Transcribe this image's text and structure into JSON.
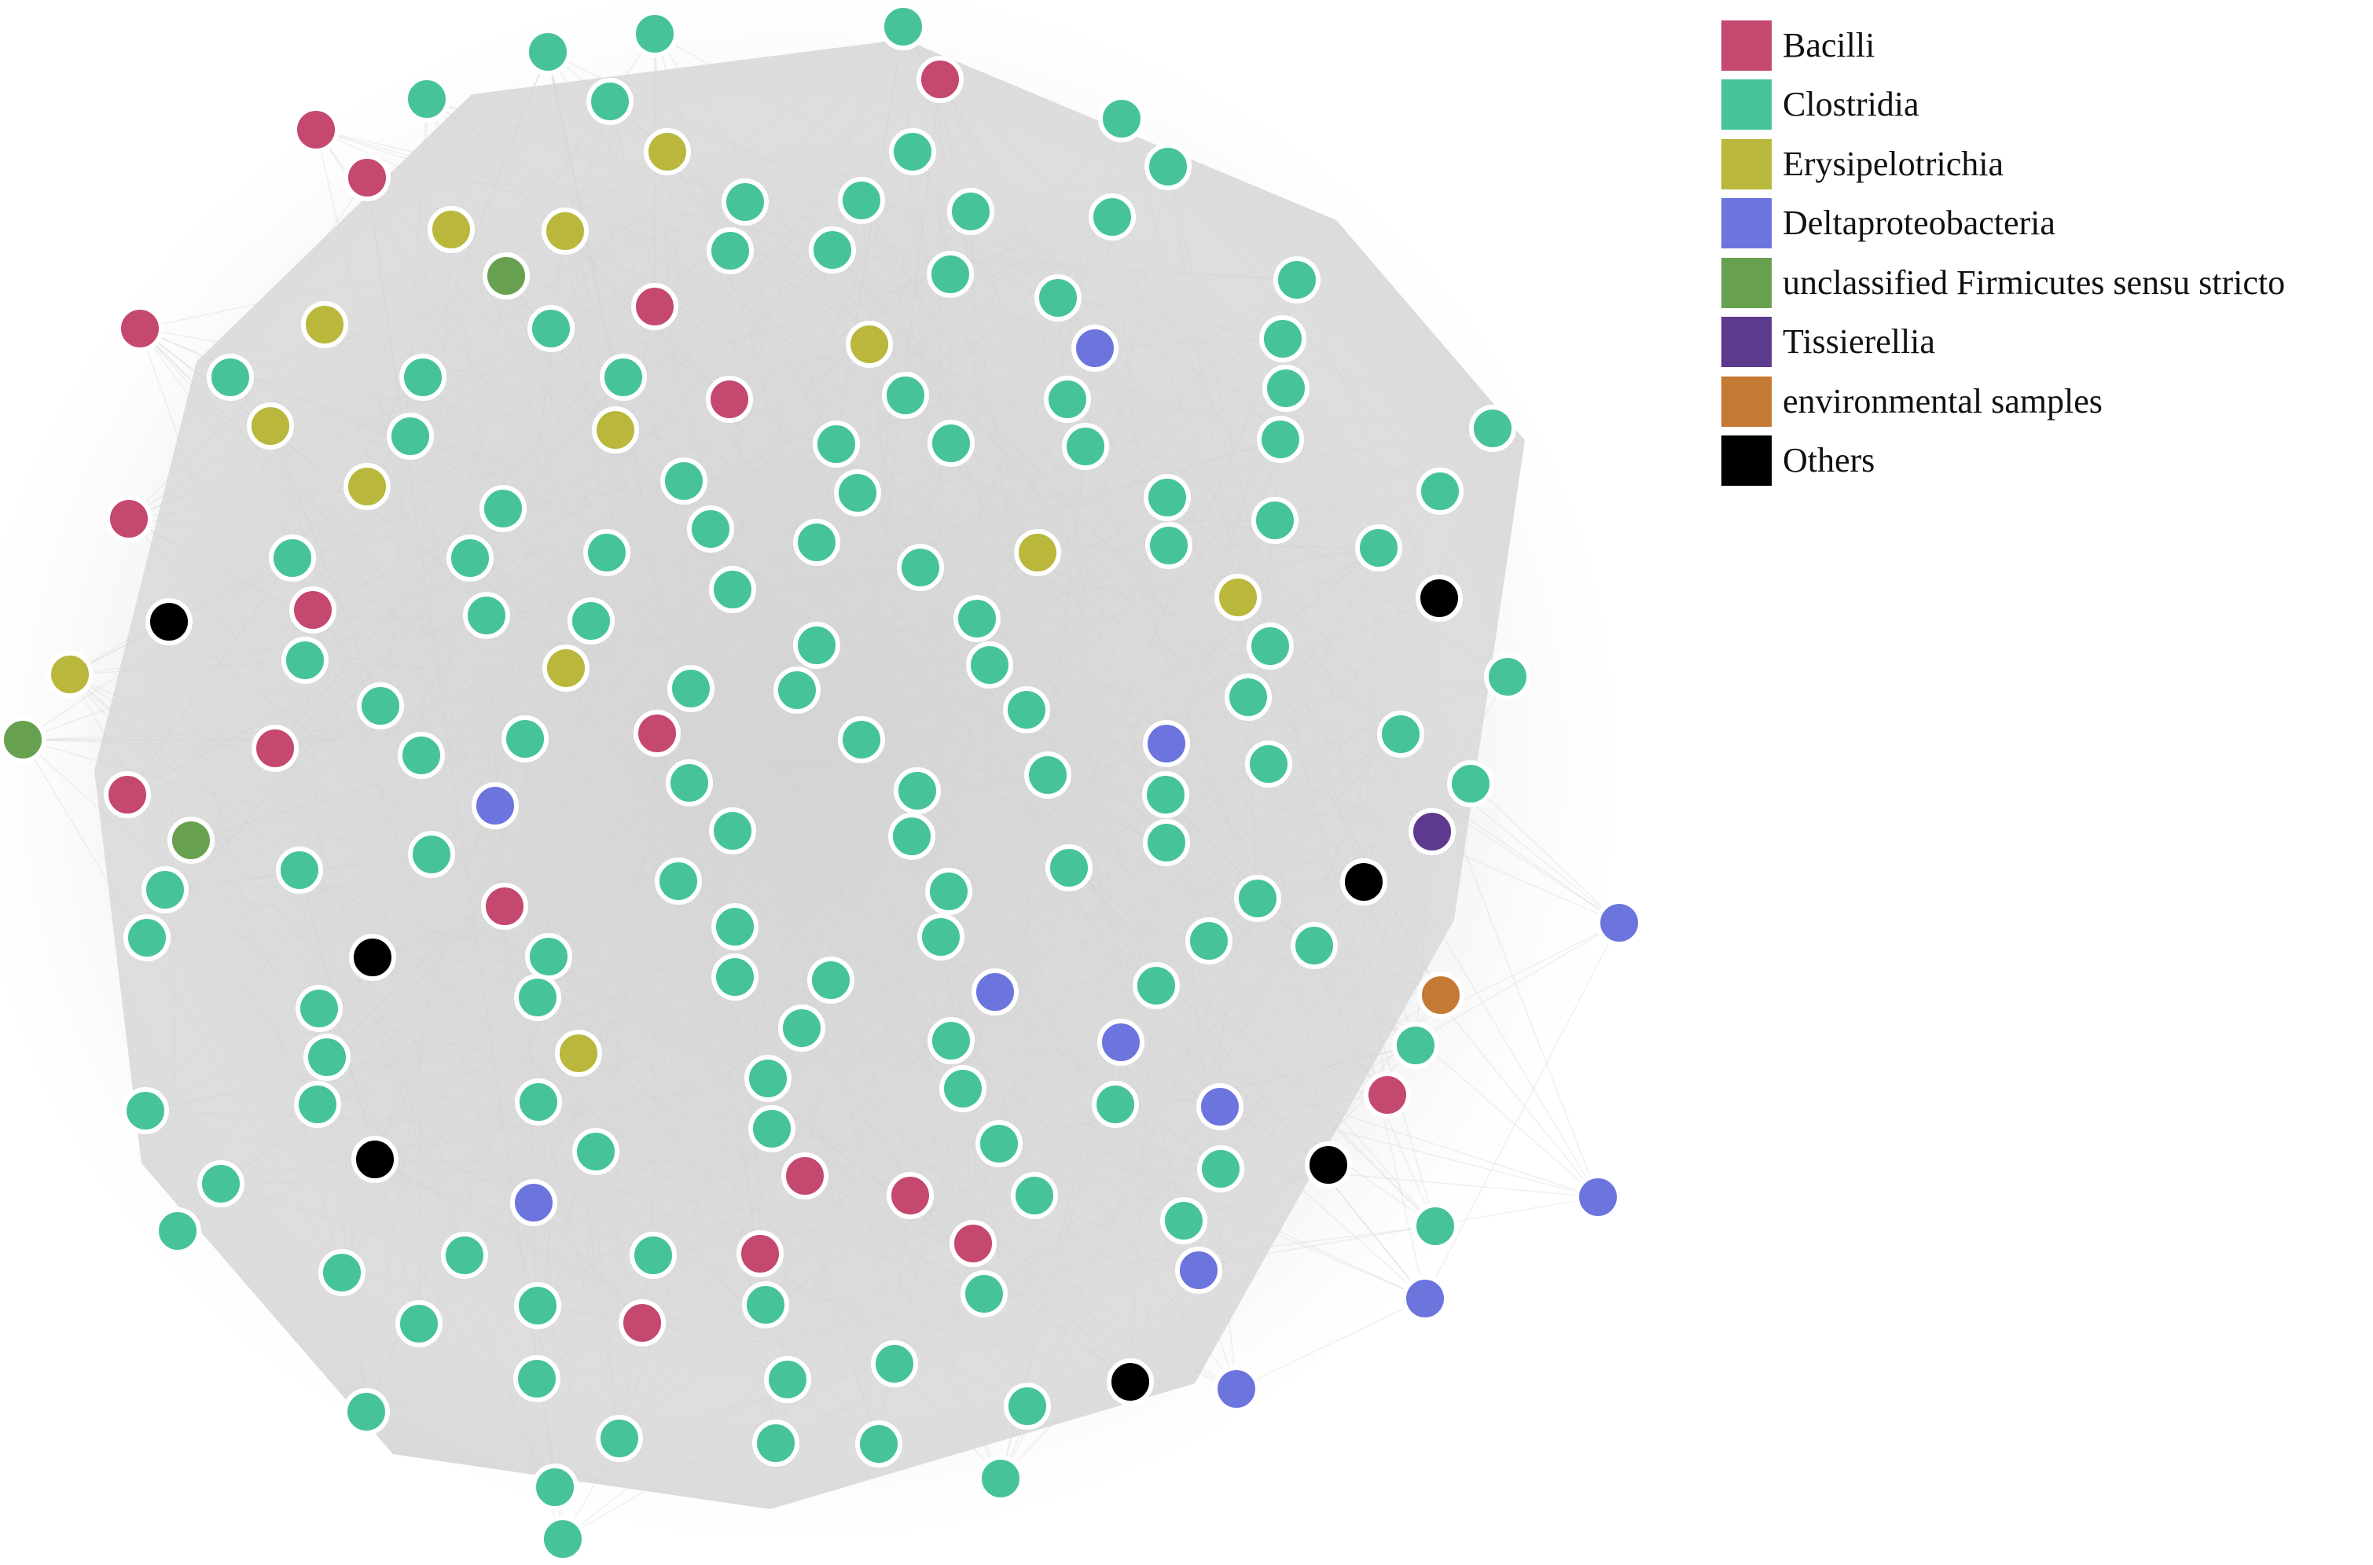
{
  "legend": {
    "items": [
      {
        "label": "Bacilli",
        "color": "#c5486e"
      },
      {
        "label": "Clostridia",
        "color": "#46c497"
      },
      {
        "label": "Erysipelotrichia",
        "color": "#b9b73c"
      },
      {
        "label": "Deltaproteobacteria",
        "color": "#6c74dd"
      },
      {
        "label": "unclassified Firmicutes sensu stricto",
        "color": "#67a14f"
      },
      {
        "label": "Tissierellia",
        "color": "#5c3a8e"
      },
      {
        "label": "environmental samples",
        "color": "#c47a35"
      },
      {
        "label": "Others",
        "color": "#000000"
      }
    ]
  },
  "network": {
    "edge_color": "#d4d4d4",
    "node_outline_color": "#ffffff"
  }
}
